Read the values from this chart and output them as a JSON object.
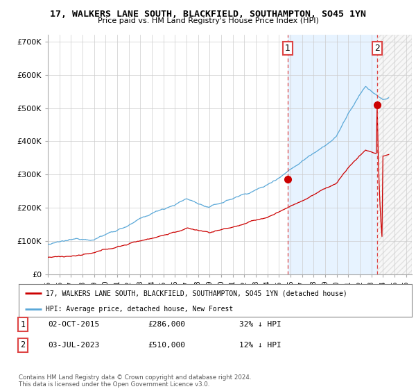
{
  "title": "17, WALKERS LANE SOUTH, BLACKFIELD, SOUTHAMPTON, SO45 1YN",
  "subtitle": "Price paid vs. HM Land Registry's House Price Index (HPI)",
  "ylim": [
    0,
    720000
  ],
  "yticks": [
    0,
    100000,
    200000,
    300000,
    400000,
    500000,
    600000,
    700000
  ],
  "ytick_labels": [
    "£0",
    "£100K",
    "£200K",
    "£300K",
    "£400K",
    "£500K",
    "£600K",
    "£700K"
  ],
  "hpi_color": "#5aa8d8",
  "price_color": "#cc0000",
  "vline_color": "#dd4444",
  "shade_color": "#ddeeff",
  "background_color": "#ffffff",
  "grid_color": "#cccccc",
  "legend_entry1": "17, WALKERS LANE SOUTH, BLACKFIELD, SOUTHAMPTON, SO45 1YN (detached house)",
  "legend_entry2": "HPI: Average price, detached house, New Forest",
  "transaction1_date": "02-OCT-2015",
  "transaction1_price": 286000,
  "transaction1_note": "32% ↓ HPI",
  "transaction1_x": 2015.75,
  "transaction2_date": "03-JUL-2023",
  "transaction2_price": 510000,
  "transaction2_note": "12% ↓ HPI",
  "transaction2_x": 2023.5,
  "footnote1": "Contains HM Land Registry data © Crown copyright and database right 2024.",
  "footnote2": "This data is licensed under the Open Government Licence v3.0.",
  "xlim_left": 1995.0,
  "xlim_right": 2026.5,
  "data_end_x": 2024.5
}
